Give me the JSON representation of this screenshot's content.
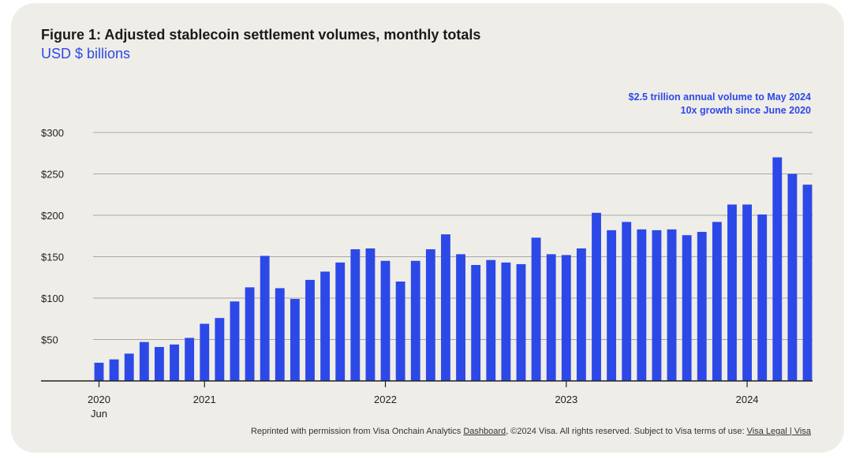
{
  "chart_data": {
    "type": "bar",
    "title": "Figure 1: Adjusted stablecoin settlement volumes, monthly totals",
    "subtitle": "USD $ billions",
    "annotation_lines": [
      "$2.5 trillion annual volume to May 2024",
      "10x growth since June 2020"
    ],
    "xlabel": "",
    "ylabel": "USD $ billions",
    "ylim": [
      0,
      300
    ],
    "yticks": [
      50,
      100,
      150,
      200,
      250,
      300
    ],
    "ytick_labels": [
      "$50",
      "$100",
      "$150",
      "$200",
      "$250",
      "$300"
    ],
    "grid": true,
    "bar_color": "#2c49e8",
    "categories": [
      "2020-06",
      "2020-07",
      "2020-08",
      "2020-09",
      "2020-10",
      "2020-11",
      "2020-12",
      "2021-01",
      "2021-02",
      "2021-03",
      "2021-04",
      "2021-05",
      "2021-06",
      "2021-07",
      "2021-08",
      "2021-09",
      "2021-10",
      "2021-11",
      "2021-12",
      "2022-01",
      "2022-02",
      "2022-03",
      "2022-04",
      "2022-05",
      "2022-06",
      "2022-07",
      "2022-08",
      "2022-09",
      "2022-10",
      "2022-11",
      "2022-12",
      "2023-01",
      "2023-02",
      "2023-03",
      "2023-04",
      "2023-05",
      "2023-06",
      "2023-07",
      "2023-08",
      "2023-09",
      "2023-10",
      "2023-11",
      "2023-12",
      "2024-01",
      "2024-02",
      "2024-03",
      "2024-04",
      "2024-05"
    ],
    "values": [
      22,
      26,
      33,
      47,
      41,
      44,
      52,
      69,
      76,
      96,
      113,
      151,
      112,
      99,
      122,
      132,
      143,
      159,
      160,
      145,
      120,
      145,
      159,
      177,
      153,
      140,
      146,
      143,
      141,
      173,
      153,
      152,
      160,
      203,
      182,
      192,
      183,
      182,
      183,
      176,
      180,
      192,
      213,
      213,
      201,
      270,
      250,
      237
    ],
    "x_tick_labels": [
      {
        "label": "2020",
        "sublabel": "Jun",
        "index": 0
      },
      {
        "label": "2021",
        "sublabel": "",
        "index": 7
      },
      {
        "label": "2022",
        "sublabel": "",
        "index": 19
      },
      {
        "label": "2023",
        "sublabel": "",
        "index": 31
      },
      {
        "label": "2024",
        "sublabel": "",
        "index": 43
      }
    ]
  },
  "footer": {
    "text_before": "Reprinted with permission from Visa Onchain Analytics ",
    "link1": "Dashboard",
    "text_middle": ", ©2024 Visa.  All rights reserved. Subject to Visa terms of use: ",
    "link2": "Visa Legal | Visa"
  }
}
